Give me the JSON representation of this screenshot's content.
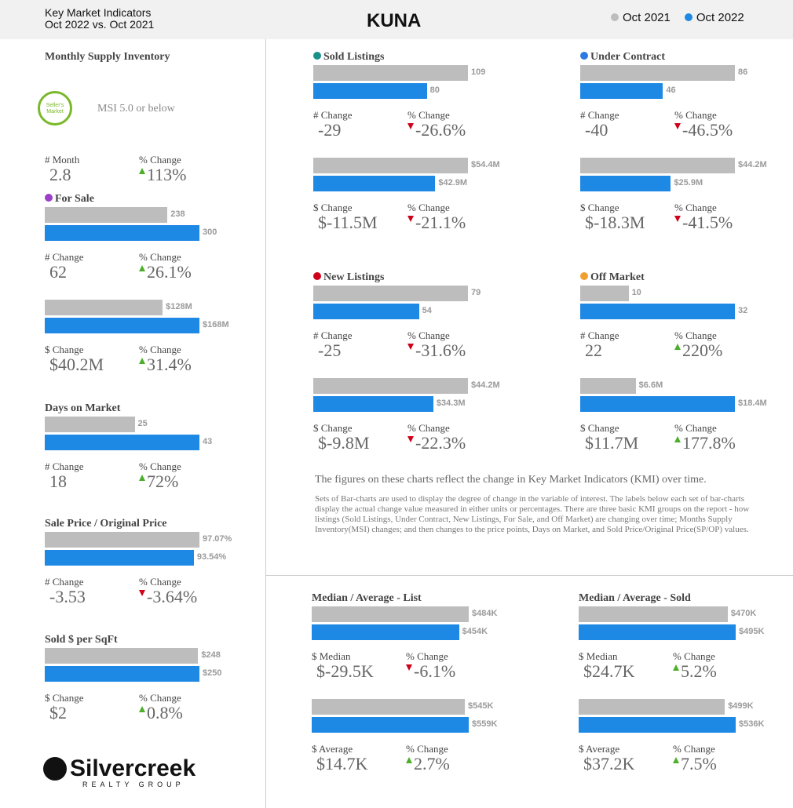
{
  "header": {
    "subtitle": [
      "Key Market Indicators",
      "Oct 2022 vs. Oct 2021"
    ],
    "title": "KUNA",
    "legend": [
      {
        "name": "Oct 2021",
        "color": "#bdbdbd"
      },
      {
        "name": "Oct 2022",
        "color": "#1e88e5"
      }
    ]
  },
  "msi": {
    "title": "Monthly Supply Inventory",
    "badge": [
      "Seller's",
      "Market"
    ],
    "note": "MSI 5.0 or below",
    "changes": [
      {
        "label": "# Month",
        "value": "2.8"
      },
      {
        "label": "% Change",
        "value": "113%",
        "direction": "up"
      }
    ]
  },
  "panels": [
    {
      "title": "For Sale",
      "dot": "#9c3fc9",
      "groups": [
        {
          "bars": [
            {
              "value": 238,
              "label": "238"
            },
            {
              "value": 300,
              "label": "300"
            }
          ],
          "changes": [
            {
              "label": "# Change",
              "value": "62"
            },
            {
              "label": "% Change",
              "value": "26.1%",
              "direction": "up"
            }
          ]
        },
        {
          "bars": [
            {
              "value": 128000000,
              "label": "$128M"
            },
            {
              "value": 168000000,
              "label": "$168M"
            }
          ],
          "changes": [
            {
              "label": "$ Change",
              "value": "$40.2M"
            },
            {
              "label": "% Change",
              "value": "31.4%",
              "direction": "up"
            }
          ]
        }
      ]
    },
    {
      "title": "Days on Market",
      "groups": [
        {
          "bars": [
            {
              "value": 25,
              "label": "25"
            },
            {
              "value": 43,
              "label": "43"
            }
          ],
          "changes": [
            {
              "label": "# Change",
              "value": "18"
            },
            {
              "label": "% Change",
              "value": "72%",
              "direction": "up"
            }
          ]
        }
      ]
    },
    {
      "title": "Sale Price / Original Price",
      "groups": [
        {
          "bars": [
            {
              "value": 97.07,
              "label": "97.07%"
            },
            {
              "value": 93.54,
              "label": "93.54%"
            }
          ],
          "changes": [
            {
              "label": "# Change",
              "value": "-3.53"
            },
            {
              "label": "% Change",
              "value": "-3.64%",
              "direction": "down"
            }
          ]
        }
      ]
    },
    {
      "title": "Sold $ per SqFt",
      "groups": [
        {
          "bars": [
            {
              "value": 248,
              "label": "$248"
            },
            {
              "value": 250,
              "label": "$250"
            }
          ],
          "changes": [
            {
              "label": "$ Change",
              "value": "$2"
            },
            {
              "label": "% Change",
              "value": "0.8%",
              "direction": "up"
            }
          ]
        }
      ]
    },
    {
      "title": "Sold Listings",
      "dot": "#17918a",
      "groups": [
        {
          "bars": [
            {
              "value": 109,
              "label": "109"
            },
            {
              "value": 80,
              "label": "80"
            }
          ],
          "changes": [
            {
              "label": "# Change",
              "value": "-29"
            },
            {
              "label": "% Change",
              "value": "-26.6%",
              "direction": "down"
            }
          ]
        },
        {
          "bars": [
            {
              "value": 54400000,
              "label": "$54.4M"
            },
            {
              "value": 42900000,
              "label": "$42.9M"
            }
          ],
          "changes": [
            {
              "label": "$ Change",
              "value": "$-11.5M"
            },
            {
              "label": "% Change",
              "value": "-21.1%",
              "direction": "down"
            }
          ]
        }
      ]
    },
    {
      "title": "Under Contract",
      "dot": "#2d7be0",
      "groups": [
        {
          "bars": [
            {
              "value": 86,
              "label": "86"
            },
            {
              "value": 46,
              "label": "46"
            }
          ],
          "changes": [
            {
              "label": "# Change",
              "value": "-40"
            },
            {
              "label": "% Change",
              "value": "-46.5%",
              "direction": "down"
            }
          ]
        },
        {
          "bars": [
            {
              "value": 44200000,
              "label": "$44.2M"
            },
            {
              "value": 25900000,
              "label": "$25.9M"
            }
          ],
          "changes": [
            {
              "label": "$ Change",
              "value": "$-18.3M"
            },
            {
              "label": "% Change",
              "value": "-41.5%",
              "direction": "down"
            }
          ]
        }
      ]
    },
    {
      "title": "New Listings",
      "dot": "#d0021b",
      "groups": [
        {
          "bars": [
            {
              "value": 79,
              "label": "79"
            },
            {
              "value": 54,
              "label": "54"
            }
          ],
          "changes": [
            {
              "label": "# Change",
              "value": "-25"
            },
            {
              "label": "% Change",
              "value": "-31.6%",
              "direction": "down"
            }
          ]
        },
        {
          "bars": [
            {
              "value": 44200000,
              "label": "$44.2M"
            },
            {
              "value": 34300000,
              "label": "$34.3M"
            }
          ],
          "changes": [
            {
              "label": "$ Change",
              "value": "$-9.8M"
            },
            {
              "label": "% Change",
              "value": "-22.3%",
              "direction": "down"
            }
          ]
        }
      ]
    },
    {
      "title": "Off Market",
      "dot": "#f0a030",
      "groups": [
        {
          "bars": [
            {
              "value": 10,
              "label": "10"
            },
            {
              "value": 32,
              "label": "32"
            }
          ],
          "changes": [
            {
              "label": "# Change",
              "value": "22"
            },
            {
              "label": "% Change",
              "value": "220%",
              "direction": "up"
            }
          ]
        },
        {
          "bars": [
            {
              "value": 6600000,
              "label": "$6.6M"
            },
            {
              "value": 18400000,
              "label": "$18.4M"
            }
          ],
          "changes": [
            {
              "label": "$ Change",
              "value": "$11.7M"
            },
            {
              "label": "% Change",
              "value": "177.8%",
              "direction": "up"
            }
          ]
        }
      ]
    },
    {
      "title": "Median / Average - List",
      "groups": [
        {
          "bars": [
            {
              "value": 484000,
              "label": "$484K"
            },
            {
              "value": 454000,
              "label": "$454K"
            }
          ],
          "changes": [
            {
              "label": "$ Median",
              "value": "$-29.5K"
            },
            {
              "label": "% Change",
              "value": "-6.1%",
              "direction": "down"
            }
          ]
        },
        {
          "bars": [
            {
              "value": 545000,
              "label": "$545K"
            },
            {
              "value": 559000,
              "label": "$559K"
            }
          ],
          "changes": [
            {
              "label": "$ Average",
              "value": "$14.7K"
            },
            {
              "label": "% Change",
              "value": "2.7%",
              "direction": "up"
            }
          ]
        }
      ]
    },
    {
      "title": "Median / Average - Sold",
      "groups": [
        {
          "bars": [
            {
              "value": 470000,
              "label": "$470K"
            },
            {
              "value": 495000,
              "label": "$495K"
            }
          ],
          "changes": [
            {
              "label": "$ Median",
              "value": "$24.7K"
            },
            {
              "label": "% Change",
              "value": "5.2%",
              "direction": "up"
            }
          ]
        },
        {
          "bars": [
            {
              "value": 499000,
              "label": "$499K"
            },
            {
              "value": 536000,
              "label": "$536K"
            }
          ],
          "changes": [
            {
              "label": "$ Average",
              "value": "$37.2K"
            },
            {
              "label": "% Change",
              "value": "7.5%",
              "direction": "up"
            }
          ]
        }
      ]
    }
  ],
  "footnote": "The figures on these charts reflect the change in Key Market Indicators (KMI) over time.",
  "description": "Sets of Bar-charts are used to display the degree of change in the variable of interest. The labels below each set of bar-charts display the actual change value measured in either units or percentages. There are three basic KMI groups on the report - how listings (Sold Listings, Under Contract, New Listings, For Sale, and Off Market) are changing over time; Months Supply Inventory(MSI) changes; and then changes to the price points, Days on Market, and Sold Price/Original Price(SP/OP) values.",
  "logo": {
    "name": "Silvercreek",
    "tagline": "REALTY GROUP"
  }
}
